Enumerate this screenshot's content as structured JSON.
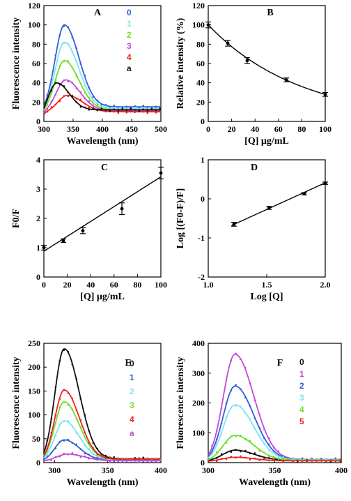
{
  "figure": {
    "panels": [
      "A",
      "B",
      "C",
      "D",
      "E",
      "F"
    ]
  },
  "chart_data": [
    {
      "panel": "A",
      "type": "line",
      "xlabel": "Wavelength (nm)",
      "ylabel": "Fluorescence intensity",
      "xlim": [
        300,
        500
      ],
      "ylim": [
        0,
        120
      ],
      "xticks": [
        300,
        350,
        400,
        450,
        500
      ],
      "yticks": [
        0,
        20,
        40,
        60,
        80,
        100,
        120
      ],
      "legend_position": "top-right",
      "series": [
        {
          "name": "0",
          "color": "#2f5fd8",
          "peak_x": 335,
          "peak_y": 100,
          "width": 35,
          "tail_y": 15
        },
        {
          "name": "1",
          "color": "#7fe3f0",
          "peak_x": 335,
          "peak_y": 82,
          "width": 35,
          "tail_y": 13
        },
        {
          "name": "2",
          "color": "#6fde2b",
          "peak_x": 335,
          "peak_y": 63,
          "width": 35,
          "tail_y": 12
        },
        {
          "name": "3",
          "color": "#c04ad6",
          "peak_x": 337,
          "peak_y": 43,
          "width": 35,
          "tail_y": 11
        },
        {
          "name": "4",
          "color": "#ee2222",
          "peak_x": 340,
          "peak_y": 27,
          "width": 36,
          "tail_y": 10
        },
        {
          "name": "a",
          "color": "#111111",
          "peak_x": 322,
          "peak_y": 40,
          "width": 30,
          "tail_y": 12
        }
      ]
    },
    {
      "panel": "B",
      "type": "scatter",
      "xlabel": "[Q] µg/mL",
      "ylabel": "Relative intensity (%)",
      "xlim": [
        0,
        100
      ],
      "ylim": [
        0,
        120
      ],
      "xticks": [
        0,
        20,
        40,
        60,
        80,
        100
      ],
      "yticks": [
        0,
        20,
        40,
        60,
        80,
        100,
        120
      ],
      "x": [
        0,
        16.7,
        33.3,
        66.7,
        100
      ],
      "y": [
        100,
        81,
        63,
        43,
        28
      ],
      "error": [
        3,
        3,
        3,
        2,
        2
      ],
      "fit": "exponential decay"
    },
    {
      "panel": "C",
      "type": "scatter",
      "xlabel": "[Q] µg/mL",
      "ylabel": "F0/F",
      "xlim": [
        0,
        100
      ],
      "ylim": [
        0,
        4
      ],
      "xticks": [
        0,
        20,
        40,
        60,
        80,
        100
      ],
      "yticks": [
        0,
        1,
        2,
        3,
        4
      ],
      "x": [
        0,
        16.7,
        33.3,
        66.7,
        100
      ],
      "y": [
        1.0,
        1.24,
        1.58,
        2.33,
        3.55
      ],
      "error": [
        0.08,
        0.06,
        0.1,
        0.2,
        0.2
      ],
      "fit_line": [
        [
          0,
          0.88
        ],
        [
          100,
          3.42
        ]
      ]
    },
    {
      "panel": "D",
      "type": "scatter",
      "xlabel": "Log [Q]",
      "ylabel": "Log [(F0-F)/F]",
      "xlim": [
        1.0,
        2.0
      ],
      "ylim": [
        -2,
        1
      ],
      "xticks": [
        1.0,
        1.5,
        2.0
      ],
      "yticks": [
        -2,
        -1,
        0,
        1
      ],
      "x": [
        1.22,
        1.52,
        1.82,
        2.0
      ],
      "y": [
        -0.65,
        -0.23,
        0.13,
        0.4
      ],
      "error": [
        0.05,
        0.04,
        0.03,
        0.03
      ],
      "fit_line": [
        [
          1.2,
          -0.68
        ],
        [
          2.0,
          0.41
        ]
      ]
    },
    {
      "panel": "E",
      "type": "line",
      "xlabel": "Wavelength (nm)",
      "ylabel": "Fluorescence intensity",
      "xlim": [
        290,
        400
      ],
      "ylim": [
        0,
        250
      ],
      "xticks": [
        300,
        350,
        400
      ],
      "yticks": [
        0,
        50,
        100,
        150,
        200,
        250
      ],
      "legend_position": "top-right",
      "series": [
        {
          "name": "0",
          "color": "#111111",
          "peak_x": 309,
          "peak_y": 240,
          "width": 20,
          "tail_y": 8
        },
        {
          "name": "1",
          "color": "#2f5fd8",
          "peak_x": 309,
          "peak_y": 48,
          "width": 20,
          "tail_y": 5
        },
        {
          "name": "2",
          "color": "#7fe3f0",
          "peak_x": 309,
          "peak_y": 88,
          "width": 20,
          "tail_y": 6
        },
        {
          "name": "3",
          "color": "#6fde2b",
          "peak_x": 309,
          "peak_y": 128,
          "width": 20,
          "tail_y": 7
        },
        {
          "name": "4",
          "color": "#ee2222",
          "peak_x": 309,
          "peak_y": 153,
          "width": 20,
          "tail_y": 7
        },
        {
          "name": "a",
          "color": "#c04ad6",
          "peak_x": 312,
          "peak_y": 18,
          "width": 22,
          "tail_y": 4
        }
      ]
    },
    {
      "panel": "F",
      "type": "line",
      "xlabel": "Wavelength (nm)",
      "ylabel": "Fluorescence intensity",
      "xlim": [
        300,
        400
      ],
      "ylim": [
        0,
        400
      ],
      "xticks": [
        300,
        350,
        400
      ],
      "yticks": [
        0,
        100,
        200,
        300,
        400
      ],
      "legend_position": "top-right",
      "series": [
        {
          "name": "0",
          "color": "#111111",
          "peak_x": 320,
          "peak_y": 42,
          "width": 20,
          "tail_y": 8
        },
        {
          "name": "1",
          "color": "#c04ad6",
          "peak_x": 320,
          "peak_y": 365,
          "width": 20,
          "tail_y": 10
        },
        {
          "name": "2",
          "color": "#2f5fd8",
          "peak_x": 320,
          "peak_y": 258,
          "width": 20,
          "tail_y": 10
        },
        {
          "name": "3",
          "color": "#7fe3f0",
          "peak_x": 320,
          "peak_y": 195,
          "width": 20,
          "tail_y": 9
        },
        {
          "name": "4",
          "color": "#6fde2b",
          "peak_x": 320,
          "peak_y": 92,
          "width": 20,
          "tail_y": 8
        },
        {
          "name": "5",
          "color": "#ee2222",
          "peak_x": 320,
          "peak_y": 18,
          "width": 20,
          "tail_y": 6
        }
      ]
    }
  ]
}
